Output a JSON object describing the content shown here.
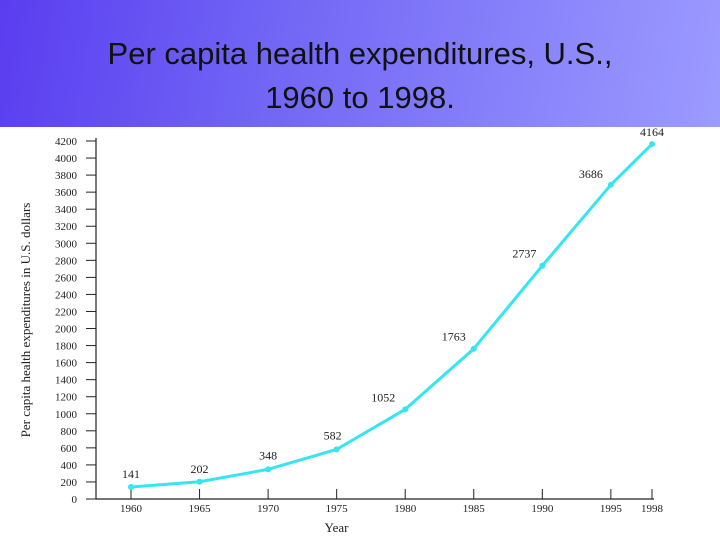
{
  "title": {
    "line1": "Per capita health expenditures, U.S.,",
    "line2": "1960 to 1998."
  },
  "colors": {
    "header_start": "#5a3df0",
    "header_end": "#9c9bff",
    "series": "#33e6f2",
    "axis": "#222222"
  },
  "chart_data": {
    "type": "line",
    "title": "Per capita health expenditures, U.S., 1960 to 1998.",
    "xlabel": "Year",
    "ylabel": "Per capita health expenditures in U.S. dollars",
    "categories": [
      "1960",
      "1965",
      "1970",
      "1975",
      "1980",
      "1985",
      "1990",
      "1995",
      "1998"
    ],
    "values": [
      141,
      202,
      348,
      582,
      1052,
      1763,
      2737,
      3686,
      4164
    ],
    "value_labels": [
      "141",
      "202",
      "348",
      "582",
      "1052",
      "1763",
      "2737",
      "3686",
      "4164"
    ],
    "ylim": [
      0,
      4200
    ],
    "yticks": [
      0,
      200,
      400,
      600,
      800,
      1000,
      1200,
      1400,
      1600,
      1800,
      2000,
      2200,
      2400,
      2600,
      2800,
      3000,
      3200,
      3400,
      3600,
      3800,
      4000,
      4200
    ],
    "grid": false,
    "legend": "none"
  }
}
